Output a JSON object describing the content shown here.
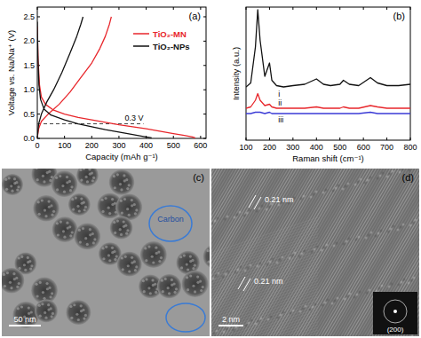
{
  "chart_data": [
    {
      "type": "line",
      "title": "(a)",
      "x_label": "Capacity (mAh g⁻¹)",
      "y_label": "Voltage vs. Na/Na⁺ (V)",
      "xlim": [
        0,
        620
      ],
      "ylim": [
        0,
        2.7
      ],
      "xticks": [
        0,
        100,
        200,
        300,
        400,
        500,
        600
      ],
      "yticks": [
        {
          "value": 0,
          "label": "0.0"
        },
        {
          "value": 0.5,
          "label": "0.5"
        },
        {
          "value": 1,
          "label": "1.0"
        },
        {
          "value": 1.5,
          "label": "1.5"
        },
        {
          "value": 2,
          "label": "2.0"
        },
        {
          "value": 2.5,
          "label": "2.5"
        }
      ],
      "legend": "upper right",
      "series": [
        {
          "name": "TiO₂-MN",
          "color": "#e8262b",
          "x": [
            0,
            3,
            8,
            15,
            30,
            60,
            100,
            150,
            200,
            250,
            300,
            350,
            400,
            450,
            500,
            540,
            570,
            580,
            null,
            0,
            5,
            15,
            40,
            80,
            120,
            160,
            200,
            230,
            250,
            265,
            272
          ],
          "values": [
            2.3,
            1.6,
            1.1,
            0.85,
            0.7,
            0.58,
            0.5,
            0.43,
            0.38,
            0.33,
            0.28,
            0.24,
            0.2,
            0.15,
            0.1,
            0.06,
            0.03,
            0.01,
            null,
            0.02,
            0.2,
            0.35,
            0.5,
            0.7,
            0.95,
            1.25,
            1.55,
            1.85,
            2.1,
            2.35,
            2.5
          ]
        },
        {
          "name": "TiO₂-NPs",
          "color": "#111111",
          "x": [
            0,
            2,
            6,
            12,
            25,
            50,
            100,
            150,
            200,
            250,
            300,
            350,
            390,
            420,
            null,
            0,
            5,
            15,
            35,
            60,
            90,
            120,
            145,
            160,
            168
          ],
          "values": [
            2.4,
            1.7,
            1.1,
            0.8,
            0.6,
            0.48,
            0.38,
            0.3,
            0.24,
            0.18,
            0.13,
            0.08,
            0.04,
            0.01,
            null,
            0.02,
            0.3,
            0.5,
            0.75,
            1.0,
            1.35,
            1.75,
            2.1,
            2.35,
            2.5
          ]
        }
      ],
      "annotations": [
        {
          "text": "0.3 V",
          "x": [
            0,
            390
          ],
          "y": 0.3
        }
      ]
    },
    {
      "type": "line",
      "title": "(b)",
      "x_label": "Raman shift (cm⁻¹)",
      "y_label": "Intensity (a.u.)",
      "xlim": [
        100,
        800
      ],
      "ylim": [
        0,
        100
      ],
      "xticks": [
        100,
        200,
        300,
        400,
        500,
        600,
        700,
        800
      ],
      "tick_labels": "x",
      "series": [
        {
          "name": "i",
          "color": "#111111",
          "x": [
            100,
            120,
            140,
            150,
            160,
            180,
            200,
            210,
            230,
            260,
            300,
            350,
            400,
            430,
            460,
            500,
            515,
            540,
            580,
            630,
            660,
            700,
            750,
            800
          ],
          "values": [
            40,
            43,
            70,
            98,
            75,
            48,
            58,
            45,
            41,
            40,
            41,
            42,
            46,
            42,
            41,
            42,
            45,
            42,
            41,
            47,
            43,
            41,
            41,
            42
          ]
        },
        {
          "name": "ii",
          "color": "#e8262b",
          "x": [
            100,
            120,
            140,
            150,
            160,
            180,
            200,
            210,
            230,
            260,
            300,
            350,
            400,
            430,
            460,
            500,
            515,
            540,
            580,
            630,
            660,
            700,
            750,
            800
          ],
          "values": [
            24,
            25,
            30,
            35,
            30,
            26,
            27,
            25,
            24,
            24,
            24,
            24,
            25,
            24,
            24,
            24,
            25,
            24,
            24,
            26,
            25,
            24,
            24,
            24
          ]
        },
        {
          "name": "iii",
          "color": "#3b3bd6",
          "x": [
            100,
            120,
            140,
            150,
            160,
            180,
            200,
            210,
            230,
            260,
            300,
            350,
            400,
            430,
            460,
            500,
            515,
            540,
            580,
            630,
            660,
            700,
            750,
            800
          ],
          "values": [
            20,
            20,
            21,
            21,
            21,
            20,
            21,
            20,
            20,
            20,
            20,
            20,
            20,
            20,
            20,
            20,
            20,
            20,
            20,
            21,
            20,
            20,
            20,
            20
          ]
        }
      ]
    }
  ],
  "images": [
    {
      "title": "(c)",
      "labels": [
        "Carbon"
      ],
      "scale_bar": "50 nm"
    },
    {
      "title": "(d)",
      "labels": [
        "0.21 nm",
        "0.21 nm"
      ],
      "scale_bar": "2 nm",
      "inset_label": "(200)"
    }
  ]
}
